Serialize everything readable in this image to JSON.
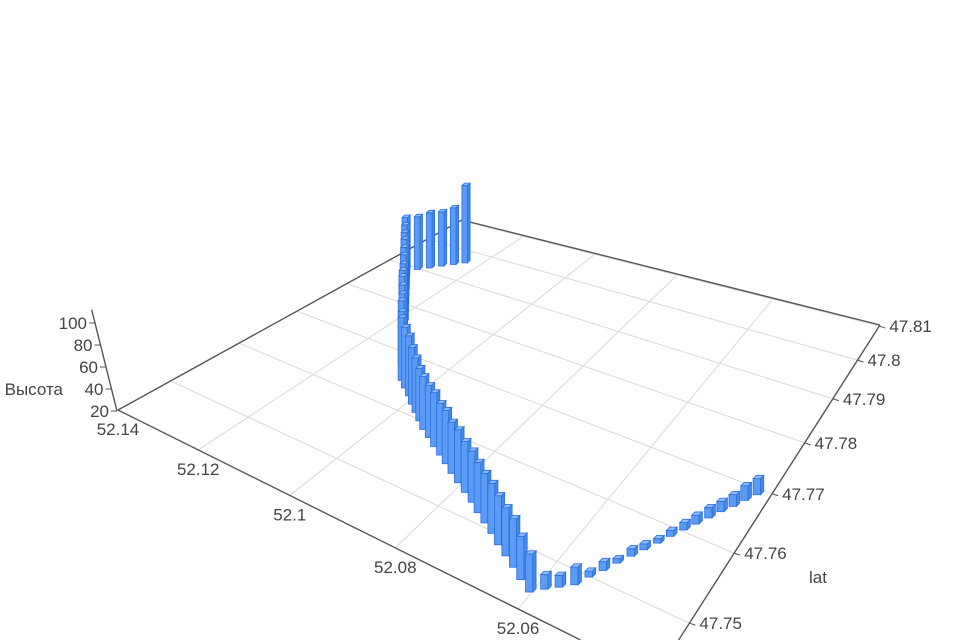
{
  "chart_data": {
    "type": "bar",
    "subtype": "3d-bars",
    "title": "",
    "x_axis": {
      "label": "",
      "field": "lon",
      "ticks": [
        "52.06",
        "52.08",
        "52.1",
        "52.12",
        "52.14"
      ],
      "range": [
        52.043,
        52.14
      ]
    },
    "y_axis": {
      "label": "lat",
      "ticks": [
        "47.75",
        "47.76",
        "47.77",
        "47.78",
        "47.79",
        "47.8",
        "47.81"
      ],
      "range": [
        47.7446,
        47.8103
      ]
    },
    "z_axis": {
      "label": "Высота",
      "ticks": [
        "20",
        "40",
        "60",
        "80",
        "100"
      ],
      "range": [
        20,
        100
      ]
    },
    "grid": true,
    "bar_color": "#5b9bf5",
    "bar_edge_color": "#2a6fdc",
    "points": [
      [
        52.1237,
        47.7958,
        88
      ],
      [
        52.1255,
        47.7943,
        70
      ],
      [
        52.1274,
        47.7928,
        68
      ],
      [
        52.1292,
        47.7912,
        69
      ],
      [
        52.1311,
        47.7897,
        67
      ],
      [
        52.133,
        47.7882,
        68
      ],
      [
        52.1309,
        47.7864,
        67
      ],
      [
        52.1288,
        47.7846,
        66
      ],
      [
        52.1267,
        47.7829,
        66
      ],
      [
        52.1246,
        47.7811,
        65
      ],
      [
        52.1224,
        47.7793,
        65
      ],
      [
        52.1203,
        47.7775,
        64
      ],
      [
        52.1182,
        47.7758,
        64
      ],
      [
        52.1162,
        47.774,
        72
      ],
      [
        52.1144,
        47.7725,
        73
      ],
      [
        52.1125,
        47.771,
        72
      ],
      [
        52.1107,
        47.7695,
        71
      ],
      [
        52.1089,
        47.7679,
        72
      ],
      [
        52.107,
        47.7664,
        70
      ],
      [
        52.1052,
        47.7649,
        72
      ],
      [
        52.1032,
        47.7639,
        70
      ],
      [
        52.1011,
        47.7629,
        69
      ],
      [
        52.0991,
        47.7618,
        66
      ],
      [
        52.0971,
        47.7608,
        64
      ],
      [
        52.0951,
        47.7598,
        62
      ],
      [
        52.0931,
        47.7588,
        62
      ],
      [
        52.091,
        47.758,
        61
      ],
      [
        52.0889,
        47.7571,
        62
      ],
      [
        52.0868,
        47.7563,
        60
      ],
      [
        52.0848,
        47.7555,
        61
      ],
      [
        52.0827,
        47.7546,
        59
      ],
      [
        52.0806,
        47.7538,
        60
      ],
      [
        52.0785,
        47.753,
        58
      ],
      [
        52.0764,
        47.7522,
        58
      ],
      [
        52.0744,
        47.7513,
        57
      ],
      [
        52.0724,
        47.7505,
        56
      ],
      [
        52.0704,
        47.7497,
        56
      ],
      [
        52.0684,
        47.7488,
        55
      ],
      [
        52.0664,
        47.748,
        54
      ],
      [
        52.0644,
        47.7472,
        54
      ],
      [
        52.0624,
        47.7463,
        50
      ],
      [
        52.0603,
        47.7455,
        46
      ],
      [
        52.0589,
        47.7465,
        30
      ],
      [
        52.0575,
        47.7474,
        28
      ],
      [
        52.056,
        47.7484,
        32
      ],
      [
        52.0551,
        47.7499,
        24
      ],
      [
        52.0541,
        47.7513,
        26
      ],
      [
        52.0532,
        47.7528,
        23
      ],
      [
        52.0522,
        47.7543,
        25
      ],
      [
        52.0513,
        47.7557,
        24
      ],
      [
        52.0503,
        47.7572,
        23
      ],
      [
        52.0494,
        47.7587,
        24
      ],
      [
        52.0484,
        47.7602,
        25
      ],
      [
        52.0475,
        47.7616,
        26
      ],
      [
        52.0465,
        47.7631,
        27
      ],
      [
        52.0456,
        47.7646,
        27
      ],
      [
        52.0446,
        47.766,
        28
      ],
      [
        52.0437,
        47.7675,
        30
      ],
      [
        52.0427,
        47.769,
        31
      ]
    ]
  }
}
